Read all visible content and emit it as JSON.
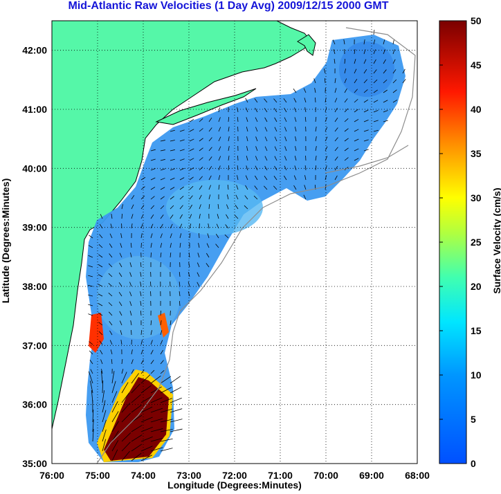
{
  "title": "Mid-Atlantic Raw Velocities (1 Day Avg) 2009/12/15 2000 GMT",
  "xlabel": "Longitude (Degrees:Minutes)",
  "ylabel": "Latitude (Degrees:Minutes)",
  "colorbar": {
    "label": "Surface Velocity (cm/s)",
    "min": 0,
    "max": 50,
    "ticks": [
      "0",
      "5",
      "10",
      "15",
      "20",
      "25",
      "30",
      "35",
      "40",
      "45",
      "50"
    ]
  },
  "axes": {
    "lon_range": [
      -76,
      -68
    ],
    "lat_range": [
      35,
      42.5
    ],
    "x_ticks": [
      "76:00",
      "75:00",
      "74:00",
      "73:00",
      "72:00",
      "71:00",
      "70:00",
      "69:00",
      "68:00"
    ],
    "y_ticks": [
      "35:00",
      "36:00",
      "37:00",
      "38:00",
      "39:00",
      "40:00",
      "41:00",
      "42:00"
    ],
    "grid": true
  },
  "colors": {
    "land": "#55f7a8",
    "coastline": "#000000",
    "bathymetry": "#8c8c8c",
    "title": "#1414d8",
    "background_field": "#3c99f0",
    "high_velocity": "#7a0000"
  }
}
